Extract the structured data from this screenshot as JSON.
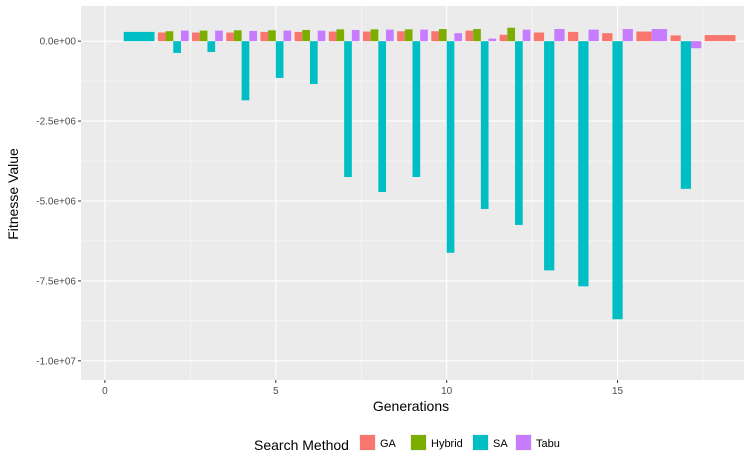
{
  "chart_data": {
    "type": "bar",
    "xlabel": "Generations",
    "ylabel": "Fitnesse Value",
    "xlim": [
      -0.7,
      18.7
    ],
    "ylim": [
      -10600000,
      1100000
    ],
    "x_ticks": [
      0,
      5,
      10,
      15
    ],
    "x_tick_labels": [
      "0",
      "5",
      "10",
      "15"
    ],
    "y_ticks": [
      0,
      -2500000,
      -5000000,
      -7500000,
      -10000000
    ],
    "y_tick_labels": [
      "0.0e+00",
      "-2.5e+06",
      "-5.0e+06",
      "-7.5e+06",
      "-1.0e+07"
    ],
    "grid": true,
    "legend": {
      "title": "Search Method",
      "placement": "bottom",
      "entries": [
        "GA",
        "Hybrid",
        "SA",
        "Tabu"
      ]
    },
    "colors": {
      "GA": "#F8766D",
      "Hybrid": "#7CAE00",
      "SA": "#00BFC4",
      "Tabu": "#C77CFF"
    },
    "x": [
      1,
      2,
      3,
      4,
      5,
      6,
      7,
      8,
      9,
      10,
      11,
      12,
      13,
      14,
      15,
      16,
      17,
      18
    ],
    "series": [
      {
        "name": "GA",
        "values": [
          null,
          270000,
          270000,
          270000,
          290000,
          290000,
          300000,
          300000,
          310000,
          310000,
          330000,
          200000,
          270000,
          290000,
          250000,
          300000,
          180000,
          190000
        ]
      },
      {
        "name": "Hybrid",
        "values": [
          null,
          310000,
          330000,
          340000,
          340000,
          350000,
          370000,
          370000,
          370000,
          380000,
          380000,
          420000,
          null,
          null,
          null,
          null,
          null,
          null
        ]
      },
      {
        "name": "SA",
        "values": [
          290000,
          -370000,
          -340000,
          -1850000,
          -1150000,
          -1340000,
          -4250000,
          -4720000,
          -4250000,
          -6620000,
          -5250000,
          -5750000,
          -7170000,
          -7670000,
          -8700000,
          null,
          -4620000,
          null
        ]
      },
      {
        "name": "Tabu",
        "values": [
          null,
          330000,
          330000,
          320000,
          330000,
          330000,
          350000,
          360000,
          360000,
          250000,
          80000,
          360000,
          380000,
          360000,
          380000,
          380000,
          -220000,
          null
        ]
      }
    ]
  }
}
